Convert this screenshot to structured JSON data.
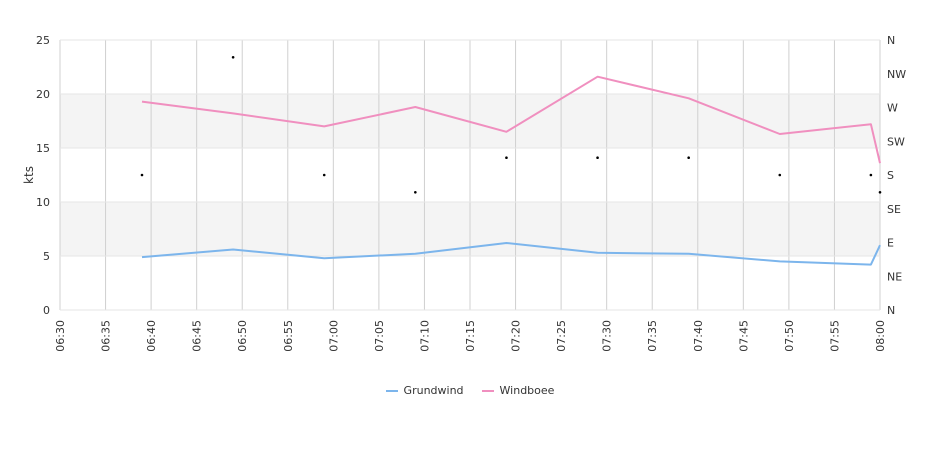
{
  "chart_data": {
    "type": "line",
    "x": [
      "06:39",
      "06:49",
      "06:59",
      "07:09",
      "07:19",
      "07:29",
      "07:39",
      "07:49",
      "07:59",
      "08:00"
    ],
    "series": [
      {
        "name": "Grundwind",
        "color": "#7cb5ec",
        "values": [
          4.9,
          5.6,
          4.8,
          5.2,
          6.2,
          5.3,
          5.2,
          4.5,
          4.2,
          6.0
        ]
      },
      {
        "name": "Windboee",
        "color": "#f08fbf",
        "values": [
          19.3,
          18.2,
          17.0,
          18.8,
          16.5,
          21.6,
          19.6,
          16.3,
          17.2,
          13.6
        ]
      }
    ],
    "direction_series": {
      "x": [
        "06:39",
        "06:49",
        "06:59",
        "07:09",
        "07:19",
        "07:29",
        "07:39",
        "07:49",
        "07:59",
        "08:00"
      ],
      "values": [
        12.5,
        23.4,
        12.5,
        10.9,
        14.1,
        14.1,
        14.1,
        12.5,
        12.5,
        10.9
      ]
    },
    "xlabel": "",
    "ylabel": "kts",
    "ylim": [
      0,
      25
    ],
    "y_ticks": [
      "0",
      "5",
      "10",
      "15",
      "20",
      "25"
    ],
    "x_ticks": [
      "06:30",
      "06:35",
      "06:40",
      "06:45",
      "06:50",
      "06:55",
      "07:00",
      "07:05",
      "07:10",
      "07:15",
      "07:20",
      "07:25",
      "07:30",
      "07:35",
      "07:40",
      "07:45",
      "07:50",
      "07:55",
      "08:00"
    ],
    "y2_ticks": [
      "N",
      "NE",
      "E",
      "SE",
      "S",
      "SW",
      "W",
      "NW",
      "N"
    ],
    "xrange": [
      "06:30",
      "08:00"
    ],
    "grid": true,
    "legend_position": "bottom-center"
  }
}
